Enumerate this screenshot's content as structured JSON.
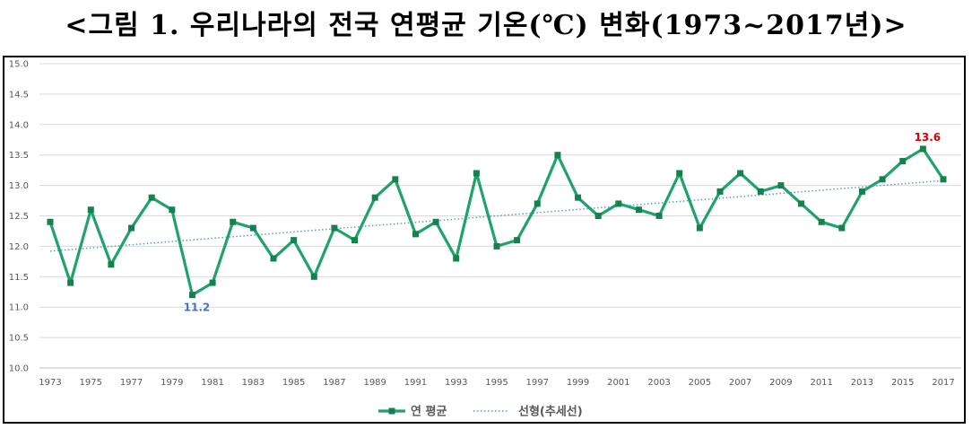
{
  "title": "<그림 1. 우리나라의 전국 연평균 기온(℃) 변화(1973~2017년)>",
  "chart_data": {
    "type": "line",
    "x": [
      1973,
      1974,
      1975,
      1976,
      1977,
      1978,
      1979,
      1980,
      1981,
      1982,
      1983,
      1984,
      1985,
      1986,
      1987,
      1988,
      1989,
      1990,
      1991,
      1992,
      1993,
      1994,
      1995,
      1996,
      1997,
      1998,
      1999,
      2000,
      2001,
      2002,
      2003,
      2004,
      2005,
      2006,
      2007,
      2008,
      2009,
      2010,
      2011,
      2012,
      2013,
      2014,
      2015,
      2016,
      2017
    ],
    "x_tick_labels": [
      "1973",
      "1975",
      "1977",
      "1979",
      "1981",
      "1983",
      "1985",
      "1987",
      "1989",
      "1991",
      "1993",
      "1995",
      "1997",
      "1999",
      "2001",
      "2003",
      "2005",
      "2007",
      "2009",
      "2011",
      "2013",
      "2015",
      "2017"
    ],
    "ylim": [
      10.0,
      15.0
    ],
    "y_tick_labels": [
      "10.0",
      "10.5",
      "11.0",
      "11.5",
      "12.0",
      "12.5",
      "13.0",
      "13.5",
      "14.0",
      "14.5",
      "15.0"
    ],
    "grid": true,
    "legend_position": "bottom",
    "series": [
      {
        "name": "연 평균",
        "color": "#1fa36b",
        "marker": "square",
        "values": [
          12.4,
          11.4,
          12.6,
          11.7,
          12.3,
          12.8,
          12.6,
          11.2,
          11.4,
          12.4,
          12.3,
          11.8,
          12.1,
          11.5,
          12.3,
          12.1,
          12.8,
          13.1,
          12.2,
          12.4,
          11.8,
          13.2,
          12.0,
          12.1,
          12.7,
          13.5,
          12.8,
          12.5,
          12.7,
          12.6,
          12.5,
          13.2,
          12.3,
          12.9,
          13.2,
          12.9,
          13.0,
          12.7,
          12.4,
          12.3,
          12.9,
          13.1,
          13.4,
          13.6,
          13.1
        ]
      },
      {
        "name": "선형(추세선)",
        "color": "#5b9bd5",
        "style": "dotted",
        "start": 11.92,
        "end": 13.08
      }
    ],
    "annotations": [
      {
        "x": 1980,
        "value": 11.2,
        "text": "11.2",
        "color": "#4472c4",
        "placement": "below"
      },
      {
        "x": 2016,
        "value": 13.6,
        "text": "13.6",
        "color": "#e00000",
        "placement": "above"
      }
    ]
  }
}
